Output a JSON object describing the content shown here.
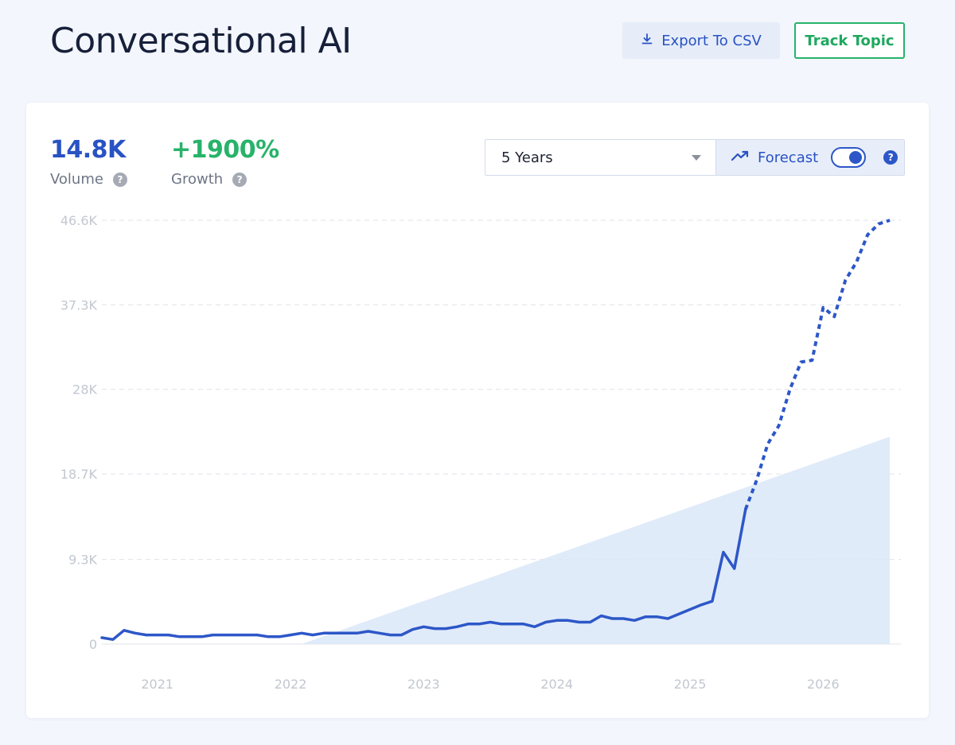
{
  "header": {
    "title": "Conversational AI",
    "export_label": "Export To CSV",
    "track_label": "Track Topic"
  },
  "metrics": {
    "volume": {
      "value": "14.8K",
      "label": "Volume"
    },
    "growth": {
      "value": "+1900%",
      "label": "Growth"
    }
  },
  "controls": {
    "range_selected": "5 Years",
    "forecast_label": "Forecast",
    "forecast_enabled": true
  },
  "colors": {
    "line": "#2d57c8",
    "trend_fill": "#dbe8f8",
    "volume": "#2952c4",
    "growth": "#27b36a",
    "grid": "#dfe3ea",
    "axis_text": "#c2c7d0"
  },
  "icons": {
    "export": "download-icon",
    "forecast": "trending-up-icon",
    "help": "question-icon"
  },
  "chart_data": {
    "type": "line",
    "ylim": [
      0,
      46600
    ],
    "y_ticks": [
      0,
      9300,
      18700,
      28000,
      37300,
      46600
    ],
    "y_tick_labels": [
      "0",
      "9.3K",
      "18.7K",
      "28K",
      "37.3K",
      "46.6K"
    ],
    "x_range": [
      "2020-08",
      "2026-08"
    ],
    "x_tick_labels": [
      "2021",
      "2022",
      "2023",
      "2024",
      "2025",
      "2026"
    ],
    "x_tick_dates": [
      "2021-01",
      "2022-01",
      "2023-01",
      "2024-01",
      "2025-01",
      "2026-01"
    ],
    "grid": true,
    "series": [
      {
        "style": "solid",
        "points": [
          [
            "2020-08",
            700
          ],
          [
            "2020-09",
            500
          ],
          [
            "2020-10",
            1500
          ],
          [
            "2020-11",
            1200
          ],
          [
            "2020-12",
            1000
          ],
          [
            "2021-01",
            1000
          ],
          [
            "2021-02",
            1000
          ],
          [
            "2021-03",
            800
          ],
          [
            "2021-04",
            800
          ],
          [
            "2021-05",
            800
          ],
          [
            "2021-06",
            1000
          ],
          [
            "2021-07",
            1000
          ],
          [
            "2021-08",
            1000
          ],
          [
            "2021-09",
            1000
          ],
          [
            "2021-10",
            1000
          ],
          [
            "2021-11",
            800
          ],
          [
            "2021-12",
            800
          ],
          [
            "2022-01",
            1000
          ],
          [
            "2022-02",
            1200
          ],
          [
            "2022-03",
            1000
          ],
          [
            "2022-04",
            1200
          ],
          [
            "2022-05",
            1200
          ],
          [
            "2022-06",
            1200
          ],
          [
            "2022-07",
            1200
          ],
          [
            "2022-08",
            1400
          ],
          [
            "2022-09",
            1200
          ],
          [
            "2022-10",
            1000
          ],
          [
            "2022-11",
            1000
          ],
          [
            "2022-12",
            1600
          ],
          [
            "2023-01",
            1900
          ],
          [
            "2023-02",
            1700
          ],
          [
            "2023-03",
            1700
          ],
          [
            "2023-04",
            1900
          ],
          [
            "2023-05",
            2200
          ],
          [
            "2023-06",
            2200
          ],
          [
            "2023-07",
            2400
          ],
          [
            "2023-08",
            2200
          ],
          [
            "2023-09",
            2200
          ],
          [
            "2023-10",
            2200
          ],
          [
            "2023-11",
            1900
          ],
          [
            "2023-12",
            2400
          ],
          [
            "2024-01",
            2600
          ],
          [
            "2024-02",
            2600
          ],
          [
            "2024-03",
            2400
          ],
          [
            "2024-04",
            2400
          ],
          [
            "2024-05",
            3100
          ],
          [
            "2024-06",
            2800
          ],
          [
            "2024-07",
            2800
          ],
          [
            "2024-08",
            2600
          ],
          [
            "2024-09",
            3000
          ],
          [
            "2024-10",
            3000
          ],
          [
            "2024-11",
            2800
          ],
          [
            "2024-12",
            3300
          ],
          [
            "2025-01",
            3800
          ],
          [
            "2025-02",
            4300
          ],
          [
            "2025-03",
            4700
          ],
          [
            "2025-04",
            10100
          ],
          [
            "2025-05",
            8300
          ],
          [
            "2025-06",
            14800
          ]
        ]
      },
      {
        "style": "dashed",
        "points": [
          [
            "2025-06",
            14800
          ],
          [
            "2025-07",
            18000
          ],
          [
            "2025-08",
            22000
          ],
          [
            "2025-09",
            24000
          ],
          [
            "2025-10",
            28000
          ],
          [
            "2025-11",
            31000
          ],
          [
            "2025-12",
            31200
          ],
          [
            "2026-01",
            37000
          ],
          [
            "2026-02",
            36000
          ],
          [
            "2026-03",
            40000
          ],
          [
            "2026-04",
            42000
          ],
          [
            "2026-05",
            45000
          ],
          [
            "2026-06",
            46200
          ],
          [
            "2026-07",
            46600
          ]
        ]
      }
    ],
    "trend_area": {
      "start": [
        "2022-02",
        0
      ],
      "end": [
        "2026-07",
        22800
      ]
    }
  }
}
